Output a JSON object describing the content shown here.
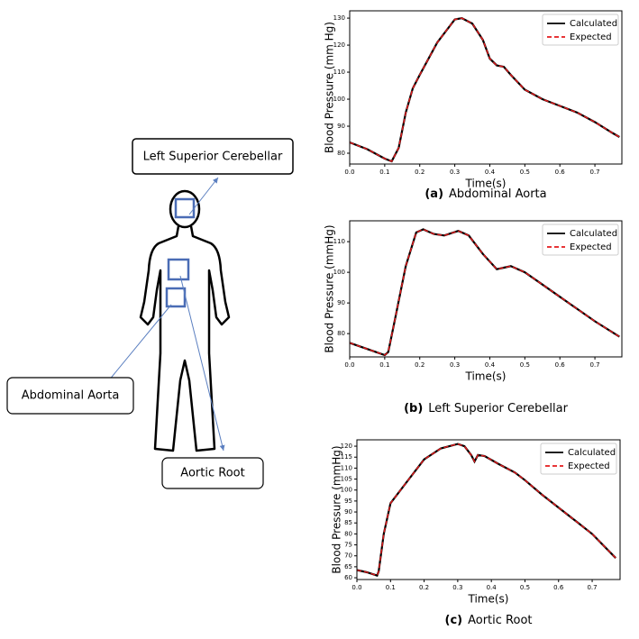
{
  "diagram": {
    "labels": [
      "Left Superior Cerebellar",
      "Abdominal Aorta",
      "Aortic Root"
    ]
  },
  "chart_data": [
    {
      "type": "line",
      "caption_label": "(a)",
      "caption": "Abdominal Aorta",
      "xlabel": "Time(s)",
      "ylabel": "Blood Pressure (mm Hg)",
      "x": [
        0,
        0.05,
        0.1,
        0.12,
        0.14,
        0.16,
        0.18,
        0.2,
        0.25,
        0.3,
        0.32,
        0.35,
        0.38,
        0.4,
        0.42,
        0.44,
        0.46,
        0.5,
        0.55,
        0.6,
        0.65,
        0.7,
        0.75,
        0.77
      ],
      "series": [
        {
          "name": "Calculated",
          "color": "#000000",
          "linestyle": "solid",
          "values": [
            84,
            81.5,
            78,
            77,
            82,
            95,
            104,
            109,
            121,
            129.5,
            130,
            128,
            122,
            115,
            112.5,
            112,
            109,
            103.5,
            100,
            97.5,
            95,
            91.5,
            87.5,
            86
          ]
        },
        {
          "name": "Expected",
          "color": "#e41a1c",
          "linestyle": "dashed",
          "values": [
            84,
            81.5,
            78,
            77,
            82,
            95,
            104,
            109,
            121,
            129.5,
            130,
            128,
            122,
            115,
            112.5,
            112,
            109,
            103.5,
            100,
            97.5,
            95,
            91.5,
            87.5,
            86
          ]
        }
      ],
      "xlim": [
        0,
        0.777
      ],
      "ylim": [
        76,
        132.7
      ],
      "xticks": [
        {
          "value": 0,
          "label": "0.0"
        },
        0.1,
        0.2,
        0.3,
        0.4,
        0.5,
        0.6,
        0.7
      ],
      "yticks": [
        80,
        90,
        100,
        110,
        120,
        130
      ],
      "legend": "upper right"
    },
    {
      "type": "line",
      "caption_label": "(b)",
      "caption": "Left Superior Cerebellar",
      "xlabel": "Time(s)",
      "ylabel": "Blood Pressure (mmHg)",
      "x": [
        0,
        0.05,
        0.1,
        0.11,
        0.13,
        0.16,
        0.19,
        0.21,
        0.24,
        0.27,
        0.31,
        0.34,
        0.38,
        0.42,
        0.44,
        0.46,
        0.5,
        0.55,
        0.6,
        0.65,
        0.7,
        0.77
      ],
      "series": [
        {
          "name": "Calculated",
          "color": "#000000",
          "linestyle": "solid",
          "values": [
            77,
            75,
            73,
            74,
            85,
            102,
            113,
            114,
            112.5,
            112,
            113.5,
            112,
            106,
            101,
            101.5,
            102,
            100,
            96,
            92,
            88,
            84,
            79
          ]
        },
        {
          "name": "Expected",
          "color": "#e41a1c",
          "linestyle": "dashed",
          "values": [
            77,
            75,
            73,
            74,
            85,
            102,
            113,
            114,
            112.5,
            112,
            113.5,
            112,
            106,
            101,
            101.5,
            102,
            100,
            96,
            92,
            88,
            84,
            79
          ]
        }
      ],
      "xlim": [
        0,
        0.777
      ],
      "ylim": [
        72.4,
        116.8
      ],
      "xticks": [
        {
          "value": 0,
          "label": "0.0"
        },
        0.1,
        0.2,
        0.3,
        0.4,
        0.5,
        0.6,
        0.7
      ],
      "yticks": [
        80,
        90,
        100,
        110
      ],
      "legend": "upper right"
    },
    {
      "type": "line",
      "caption_label": "(c)",
      "caption": "Aortic Root",
      "xlabel": "Time(s)",
      "ylabel": "Blood Pressure (mmHg)",
      "x": [
        0,
        0.03,
        0.06,
        0.065,
        0.08,
        0.1,
        0.15,
        0.2,
        0.25,
        0.3,
        0.32,
        0.34,
        0.35,
        0.36,
        0.38,
        0.42,
        0.47,
        0.5,
        0.55,
        0.6,
        0.65,
        0.7,
        0.77
      ],
      "series": [
        {
          "name": "Calculated",
          "color": "#000000",
          "linestyle": "solid",
          "values": [
            63.5,
            62.5,
            61,
            63,
            80,
            94,
            104,
            114,
            119,
            121,
            120,
            116,
            113,
            116,
            115.5,
            112,
            108,
            104.5,
            98,
            92,
            86,
            80,
            69
          ]
        },
        {
          "name": "Expected",
          "color": "#e41a1c",
          "linestyle": "dashed",
          "values": [
            63.5,
            62.5,
            61,
            63,
            80,
            94,
            104,
            114,
            119,
            121,
            120,
            116,
            113,
            116,
            115.5,
            112,
            108,
            104.5,
            98,
            92,
            86,
            80,
            69
          ]
        }
      ],
      "xlim": [
        0,
        0.783
      ],
      "ylim": [
        59.2,
        122.9
      ],
      "xticks": [
        {
          "value": 0,
          "label": "0.0"
        },
        0.1,
        0.2,
        0.3,
        0.4,
        0.5,
        0.6,
        0.7
      ],
      "yticks": [
        60,
        65,
        70,
        75,
        80,
        85,
        90,
        95,
        100,
        105,
        110,
        115,
        120
      ],
      "legend": "upper right"
    }
  ]
}
